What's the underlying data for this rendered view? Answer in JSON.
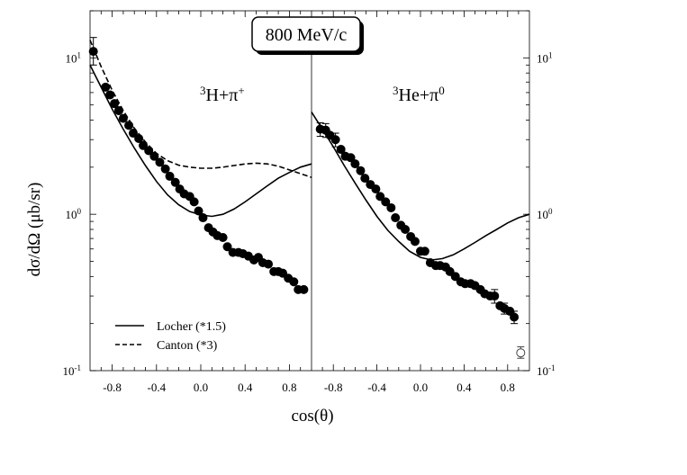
{
  "chart_data": {
    "type": "scatter",
    "title": "800 MeV/c",
    "xlabel": "cos(θ)",
    "ylabel": "dσ/dΩ (μb/sr)",
    "yscale": "log",
    "ylim": [
      0.1,
      20
    ],
    "y_ticks": [
      {
        "value": 0.1,
        "mantissa": "10",
        "exp": "-1"
      },
      {
        "value": 1,
        "mantissa": "10",
        "exp": "0"
      },
      {
        "value": 10,
        "mantissa": "10",
        "exp": "1"
      }
    ],
    "legend": {
      "placement": "bottom-left of left panel",
      "entries": [
        {
          "label": "Locher  (*1.5)",
          "style": "solid"
        },
        {
          "label": "Canton  (*3)",
          "style": "dashed"
        }
      ]
    },
    "panels": [
      {
        "label_sup": "3",
        "label_main": "H+π",
        "label_tail": "+",
        "xlim": [
          -1.0,
          1.0
        ],
        "x_tick_labels": [
          "-0.8",
          "-0.4",
          "0.0",
          "0.4",
          "0.8"
        ],
        "x_tick_values": [
          -0.8,
          -0.4,
          0.0,
          0.4,
          0.8
        ],
        "data": {
          "x": [
            -0.97,
            -0.86,
            -0.82,
            -0.78,
            -0.74,
            -0.7,
            -0.65,
            -0.61,
            -0.56,
            -0.52,
            -0.47,
            -0.42,
            -0.37,
            -0.32,
            -0.28,
            -0.23,
            -0.19,
            -0.15,
            -0.1,
            -0.06,
            -0.02,
            0.02,
            0.07,
            0.11,
            0.15,
            0.2,
            0.24,
            0.29,
            0.34,
            0.38,
            0.43,
            0.48,
            0.52,
            0.56,
            0.61,
            0.66,
            0.7,
            0.74,
            0.79,
            0.84,
            0.88,
            0.93
          ],
          "y": [
            11.0,
            6.5,
            5.8,
            5.1,
            4.6,
            4.1,
            3.7,
            3.3,
            3.05,
            2.75,
            2.55,
            2.35,
            2.15,
            1.95,
            1.75,
            1.6,
            1.45,
            1.35,
            1.3,
            1.2,
            1.05,
            0.95,
            0.82,
            0.77,
            0.73,
            0.71,
            0.62,
            0.57,
            0.57,
            0.56,
            0.54,
            0.51,
            0.53,
            0.49,
            0.48,
            0.43,
            0.43,
            0.42,
            0.39,
            0.37,
            0.33,
            0.33
          ],
          "error_bars": [
            {
              "x": -0.97,
              "low": 9.0,
              "high": 13.5
            }
          ]
        },
        "curves": [
          {
            "name": "Locher (*1.5)",
            "style": "solid",
            "x": [
              -1.0,
              -0.9,
              -0.8,
              -0.7,
              -0.6,
              -0.5,
              -0.4,
              -0.3,
              -0.2,
              -0.1,
              0.0,
              0.1,
              0.2,
              0.3,
              0.4,
              0.5,
              0.6,
              0.7,
              0.8,
              0.9,
              1.0
            ],
            "y": [
              9.0,
              6.5,
              4.7,
              3.5,
              2.65,
              2.05,
              1.62,
              1.33,
              1.15,
              1.04,
              0.99,
              0.97,
              1.0,
              1.08,
              1.2,
              1.35,
              1.52,
              1.7,
              1.85,
              2.0,
              2.1
            ]
          },
          {
            "name": "Canton (*3)",
            "style": "dashed",
            "x": [
              -1.0,
              -0.9,
              -0.8,
              -0.7,
              -0.6,
              -0.5,
              -0.4,
              -0.3,
              -0.2,
              -0.1,
              0.0,
              0.1,
              0.2,
              0.3,
              0.4,
              0.5,
              0.6,
              0.7,
              0.8,
              0.9,
              1.0
            ],
            "y": [
              13.0,
              8.8,
              6.2,
              4.6,
              3.55,
              2.9,
              2.45,
              2.2,
              2.06,
              2.0,
              1.97,
              1.97,
              2.0,
              2.05,
              2.1,
              2.12,
              2.1,
              2.03,
              1.92,
              1.82,
              1.72
            ]
          }
        ]
      },
      {
        "label_sup": "3",
        "label_main": "He+π",
        "label_tail": "0",
        "xlim": [
          -1.0,
          1.0
        ],
        "x_tick_labels": [
          "-0.8",
          "-0.4",
          "0.0",
          "0.4",
          "0.8"
        ],
        "x_tick_values": [
          -0.8,
          -0.4,
          0.0,
          0.4,
          0.8
        ],
        "data": {
          "x": [
            -0.92,
            -0.87,
            -0.83,
            -0.78,
            -0.73,
            -0.69,
            -0.64,
            -0.6,
            -0.55,
            -0.51,
            -0.46,
            -0.41,
            -0.37,
            -0.32,
            -0.27,
            -0.23,
            -0.18,
            -0.14,
            -0.09,
            -0.05,
            0.0,
            0.04,
            0.09,
            0.14,
            0.18,
            0.23,
            0.27,
            0.32,
            0.37,
            0.41,
            0.46,
            0.5,
            0.55,
            0.59,
            0.64,
            0.68,
            0.73,
            0.77,
            0.82,
            0.86
          ],
          "y": [
            3.5,
            3.45,
            3.2,
            3.0,
            2.6,
            2.35,
            2.3,
            2.1,
            1.9,
            1.7,
            1.55,
            1.45,
            1.3,
            1.2,
            1.1,
            0.95,
            0.85,
            0.8,
            0.72,
            0.67,
            0.58,
            0.58,
            0.49,
            0.47,
            0.47,
            0.46,
            0.43,
            0.4,
            0.37,
            0.36,
            0.36,
            0.35,
            0.33,
            0.31,
            0.3,
            0.3,
            0.26,
            0.25,
            0.24,
            0.22
          ],
          "error_bars": [
            {
              "x": -0.92,
              "low": 3.15,
              "high": 3.85
            },
            {
              "x": -0.87,
              "low": 3.1,
              "high": 3.8
            },
            {
              "x": -0.78,
              "low": 2.7,
              "high": 3.3
            },
            {
              "x": 0.68,
              "low": 0.27,
              "high": 0.33
            },
            {
              "x": 0.77,
              "low": 0.23,
              "high": 0.27
            },
            {
              "x": 0.86,
              "low": 0.2,
              "high": 0.24
            }
          ],
          "open_points": [
            {
              "x": 0.92,
              "y": 0.13,
              "low": 0.12,
              "high": 0.142
            }
          ]
        },
        "curves": [
          {
            "name": "Locher (*1.5)",
            "style": "solid",
            "x": [
              -1.0,
              -0.9,
              -0.8,
              -0.7,
              -0.6,
              -0.5,
              -0.4,
              -0.3,
              -0.2,
              -0.1,
              0.0,
              0.1,
              0.2,
              0.3,
              0.4,
              0.5,
              0.6,
              0.7,
              0.8,
              0.9,
              1.0
            ],
            "y": [
              4.5,
              3.5,
              2.7,
              2.05,
              1.58,
              1.23,
              0.97,
              0.79,
              0.67,
              0.58,
              0.53,
              0.51,
              0.52,
              0.55,
              0.6,
              0.66,
              0.73,
              0.8,
              0.88,
              0.95,
              1.0
            ]
          }
        ]
      }
    ]
  }
}
